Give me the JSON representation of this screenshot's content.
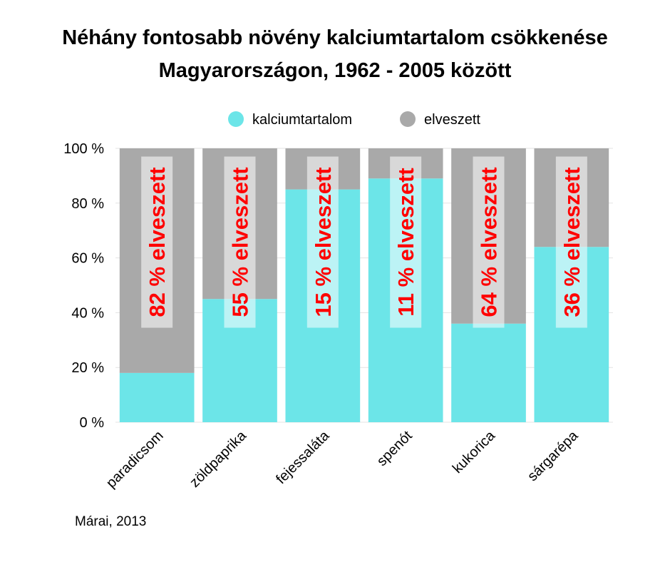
{
  "title_line1": "Néhány fontosabb növény kalciumtartalom csökkenése",
  "title_line2": "Magyarországon, 1962 - 2005 között",
  "source": "Márai, 2013",
  "colors": {
    "calcium": "#6ce5e8",
    "lost": "#a9a9a9",
    "label_text": "#ff0000",
    "label_box": "#ffffff"
  },
  "chart_data": {
    "type": "bar",
    "stacked": true,
    "categories": [
      "paradicsom",
      "zöldpaprika",
      "fejessaláta",
      "spenót",
      "kukorica",
      "sárgarépa"
    ],
    "series": [
      {
        "name": "kalciumtartalom",
        "values": [
          18,
          45,
          85,
          89,
          36,
          64
        ]
      },
      {
        "name": "elveszett",
        "values": [
          82,
          55,
          15,
          11,
          64,
          36
        ]
      }
    ],
    "data_labels": [
      "82 % elveszett",
      "55 % elveszett",
      "15 % elveszett",
      "11 % elveszett",
      "64 % elveszett",
      "36 % elveszett"
    ],
    "yticks": [
      "0 %",
      "20 %",
      "40 %",
      "60 %",
      "80 %",
      "100 %"
    ],
    "ylim": [
      0,
      100
    ],
    "grid": true,
    "legend_position": "top"
  }
}
